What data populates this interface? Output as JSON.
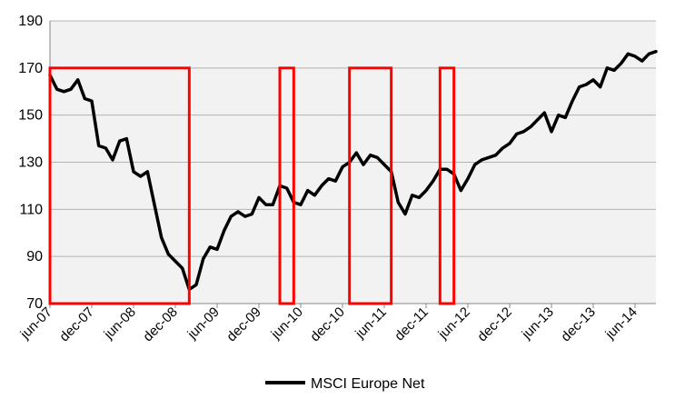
{
  "chart_data": {
    "type": "line",
    "title": "",
    "xlabel": "",
    "ylabel": "",
    "ylim": [
      70,
      190
    ],
    "yticks": [
      70,
      90,
      110,
      130,
      150,
      170,
      190
    ],
    "xlim": [
      "2007-06",
      "2014-09"
    ],
    "xticks": [
      "jun-07",
      "dec-07",
      "jun-08",
      "dec-08",
      "jun-09",
      "dec-09",
      "jun-10",
      "dec-10",
      "jun-11",
      "dec-11",
      "jun-12",
      "dec-12",
      "jun-13",
      "dec-13",
      "jun-14"
    ],
    "grid": "horizontal",
    "background_color": "#f2f2f2",
    "legend_position": "bottom",
    "series": [
      {
        "name": "MSCI Europe Net",
        "color": "#000000",
        "x": [
          "2007-06",
          "2007-07",
          "2007-08",
          "2007-09",
          "2007-10",
          "2007-11",
          "2007-12",
          "2008-01",
          "2008-02",
          "2008-03",
          "2008-04",
          "2008-05",
          "2008-06",
          "2008-07",
          "2008-08",
          "2008-09",
          "2008-10",
          "2008-11",
          "2008-12",
          "2009-01",
          "2009-02",
          "2009-03",
          "2009-04",
          "2009-05",
          "2009-06",
          "2009-07",
          "2009-08",
          "2009-09",
          "2009-10",
          "2009-11",
          "2009-12",
          "2010-01",
          "2010-02",
          "2010-03",
          "2010-04",
          "2010-05",
          "2010-06",
          "2010-07",
          "2010-08",
          "2010-09",
          "2010-10",
          "2010-11",
          "2010-12",
          "2011-01",
          "2011-02",
          "2011-03",
          "2011-04",
          "2011-05",
          "2011-06",
          "2011-07",
          "2011-08",
          "2011-09",
          "2011-10",
          "2011-11",
          "2011-12",
          "2012-01",
          "2012-02",
          "2012-03",
          "2012-04",
          "2012-05",
          "2012-06",
          "2012-07",
          "2012-08",
          "2012-09",
          "2012-10",
          "2012-11",
          "2012-12",
          "2013-01",
          "2013-02",
          "2013-03",
          "2013-04",
          "2013-05",
          "2013-06",
          "2013-07",
          "2013-08",
          "2013-09",
          "2013-10",
          "2013-11",
          "2013-12",
          "2014-01",
          "2014-02",
          "2014-03",
          "2014-04",
          "2014-05",
          "2014-06",
          "2014-07",
          "2014-08",
          "2014-09"
        ],
        "y": [
          167,
          161,
          160,
          161,
          165,
          157,
          156,
          137,
          136,
          131,
          139,
          140,
          126,
          124,
          126,
          112,
          98,
          91,
          88,
          85,
          76,
          78,
          89,
          94,
          93,
          101,
          107,
          109,
          107,
          108,
          115,
          112,
          112,
          120,
          119,
          113,
          112,
          118,
          116,
          120,
          123,
          122,
          128,
          130,
          134,
          129,
          133,
          132,
          129,
          126,
          113,
          108,
          116,
          115,
          118,
          122,
          127,
          127,
          125,
          118,
          123,
          129,
          131,
          132,
          133,
          136,
          138,
          142,
          143,
          145,
          148,
          151,
          143,
          150,
          149,
          156,
          162,
          163,
          165,
          162,
          170,
          169,
          172,
          176,
          175,
          173,
          176,
          177
        ]
      }
    ],
    "highlight_boxes": [
      {
        "x_start": "2007-06",
        "x_end": "2009-02",
        "y_low": 70,
        "y_high": 170,
        "color": "#ff0000"
      },
      {
        "x_start": "2010-03",
        "x_end": "2010-05",
        "y_low": 70,
        "y_high": 170,
        "color": "#ff0000"
      },
      {
        "x_start": "2011-01",
        "x_end": "2011-07",
        "y_low": 70,
        "y_high": 170,
        "color": "#ff0000"
      },
      {
        "x_start": "2012-02",
        "x_end": "2012-04",
        "y_low": 70,
        "y_high": 170,
        "color": "#ff0000"
      }
    ]
  }
}
